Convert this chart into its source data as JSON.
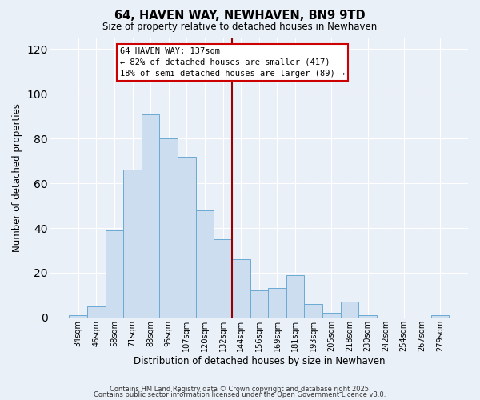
{
  "title": "64, HAVEN WAY, NEWHAVEN, BN9 9TD",
  "subtitle": "Size of property relative to detached houses in Newhaven",
  "xlabel": "Distribution of detached houses by size in Newhaven",
  "ylabel": "Number of detached properties",
  "bar_labels": [
    "34sqm",
    "46sqm",
    "58sqm",
    "71sqm",
    "83sqm",
    "95sqm",
    "107sqm",
    "120sqm",
    "132sqm",
    "144sqm",
    "156sqm",
    "169sqm",
    "181sqm",
    "193sqm",
    "205sqm",
    "218sqm",
    "230sqm",
    "242sqm",
    "254sqm",
    "267sqm",
    "279sqm"
  ],
  "bar_values": [
    1,
    5,
    39,
    66,
    91,
    80,
    72,
    48,
    35,
    26,
    12,
    13,
    19,
    6,
    2,
    7,
    1,
    0,
    0,
    0,
    1
  ],
  "bar_color": "#ccddf0",
  "bar_edge_color": "#6aaad4",
  "background_color": "#eaf0f8",
  "grid_color": "#ffffff",
  "vline_color": "#990000",
  "annotation_title": "64 HAVEN WAY: 137sqm",
  "annotation_line1": "← 82% of detached houses are smaller (417)",
  "annotation_line2": "18% of semi-detached houses are larger (89) →",
  "annotation_box_color": "#ffffff",
  "annotation_box_edge": "#cc0000",
  "ylim": [
    0,
    125
  ],
  "yticks": [
    0,
    20,
    40,
    60,
    80,
    100,
    120
  ],
  "footer1": "Contains HM Land Registry data © Crown copyright and database right 2025.",
  "footer2": "Contains public sector information licensed under the Open Government Licence v3.0."
}
